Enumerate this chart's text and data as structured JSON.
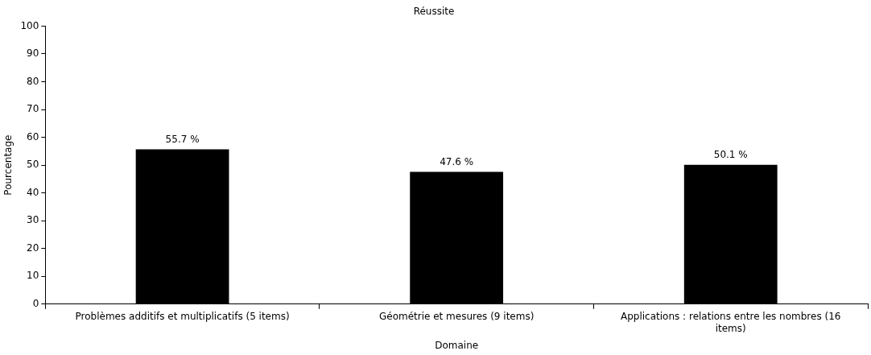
{
  "chart_data": {
    "type": "bar",
    "title": "Réussite",
    "xlabel": "Domaine",
    "ylabel": "Pourcentage",
    "categories": [
      "Problèmes additifs et multiplicatifs (5 items)",
      "Géométrie et mesures (9 items)",
      "Applications : relations entre les nombres (16 items)"
    ],
    "values": [
      55.7,
      47.6,
      50.1
    ],
    "color": "#000000",
    "value_labels": [
      "55.7 %",
      "47.6 %",
      "50.1 %"
    ],
    "ylim": [
      0,
      100
    ],
    "yticks": [
      0,
      10,
      20,
      30,
      40,
      50,
      60,
      70,
      80,
      90,
      100
    ],
    "grid": false,
    "legend": false
  }
}
